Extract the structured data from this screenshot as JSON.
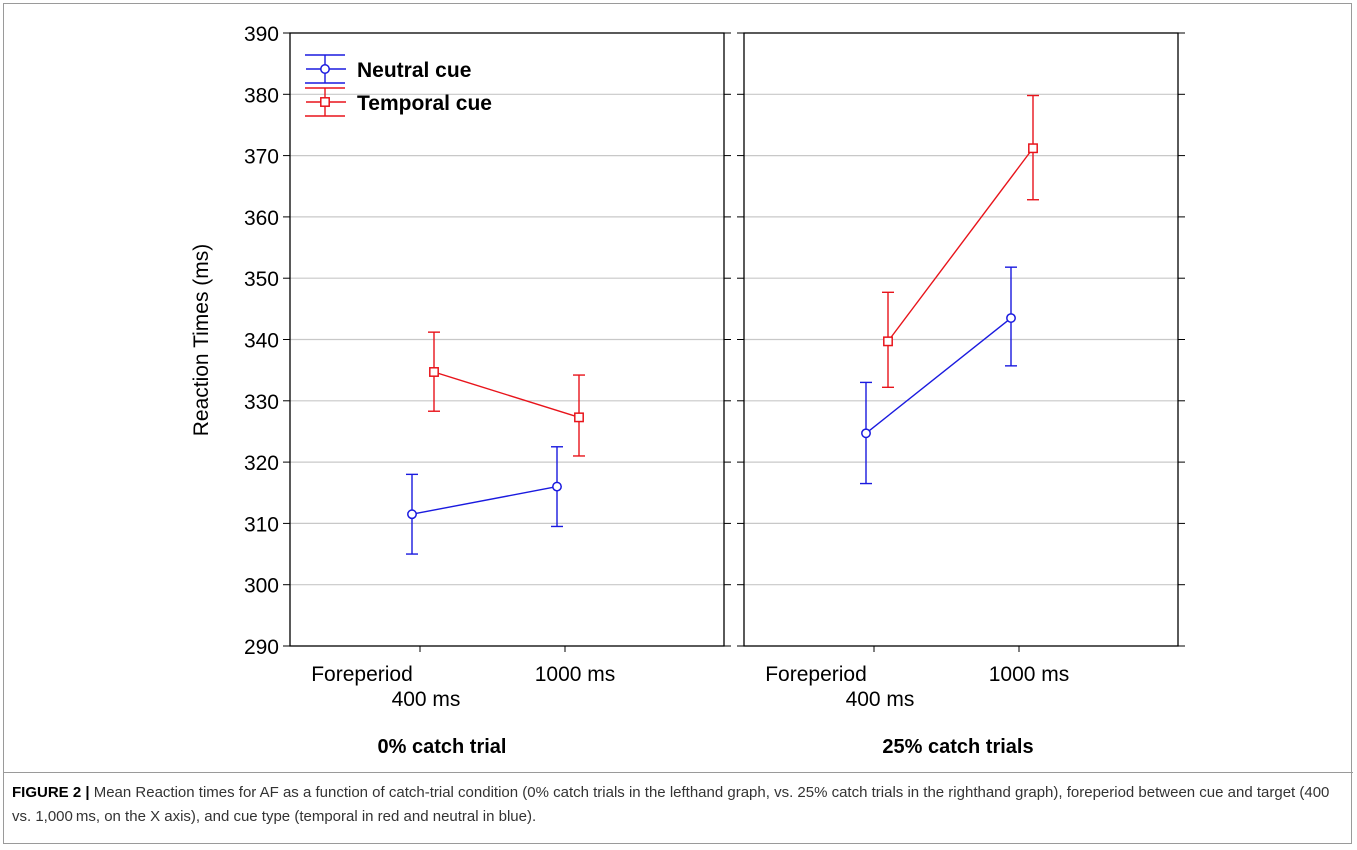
{
  "figure": {
    "caption_label": "FIGURE 2 |",
    "caption_text": "Mean Reaction times for AF as a function of catch-trial condition (0% catch trials in the lefthand graph, vs. 25% catch trials in the righthand graph), foreperiod between cue and target (400 vs. 1,000 ms, on the X axis), and cue type (temporal in red and neutral in blue)."
  },
  "colors": {
    "neutral": "#1a1adf",
    "temporal": "#e8141b",
    "grid": "#c8c8c8",
    "axis": "#000000"
  },
  "chart_data": [
    {
      "type": "line",
      "panel_title": "0% catch trial",
      "ylabel": "Reaction Times (ms)",
      "ylim": [
        290,
        390
      ],
      "yticks": [
        290,
        300,
        310,
        320,
        330,
        340,
        350,
        360,
        370,
        380,
        390
      ],
      "xaxis_title": "Foreperiod",
      "categories": [
        "400 ms",
        "1000 ms"
      ],
      "grid": true,
      "legend": {
        "placement": "top-left",
        "entries": [
          "Neutral cue",
          "Temporal cue"
        ]
      },
      "series": [
        {
          "name": "Neutral cue",
          "marker": "circle",
          "color": "#1a1adf",
          "values": [
            311.5,
            316.0
          ],
          "err_low": [
            305.0,
            309.5
          ],
          "err_high": [
            318.0,
            322.5
          ]
        },
        {
          "name": "Temporal cue",
          "marker": "square",
          "color": "#e8141b",
          "values": [
            334.7,
            327.3
          ],
          "err_low": [
            328.3,
            321.0
          ],
          "err_high": [
            341.2,
            334.2
          ]
        }
      ]
    },
    {
      "type": "line",
      "panel_title": "25% catch trials",
      "ylim": [
        290,
        390
      ],
      "xaxis_title": "Foreperiod",
      "categories": [
        "400 ms",
        "1000 ms"
      ],
      "grid": true,
      "series": [
        {
          "name": "Neutral cue",
          "marker": "circle",
          "color": "#1a1adf",
          "values": [
            324.7,
            343.5
          ],
          "err_low": [
            316.5,
            335.7
          ],
          "err_high": [
            333.0,
            351.8
          ]
        },
        {
          "name": "Temporal cue",
          "marker": "square",
          "color": "#e8141b",
          "values": [
            339.7,
            371.2
          ],
          "err_low": [
            332.2,
            362.8
          ],
          "err_high": [
            347.7,
            379.8
          ]
        }
      ]
    }
  ]
}
